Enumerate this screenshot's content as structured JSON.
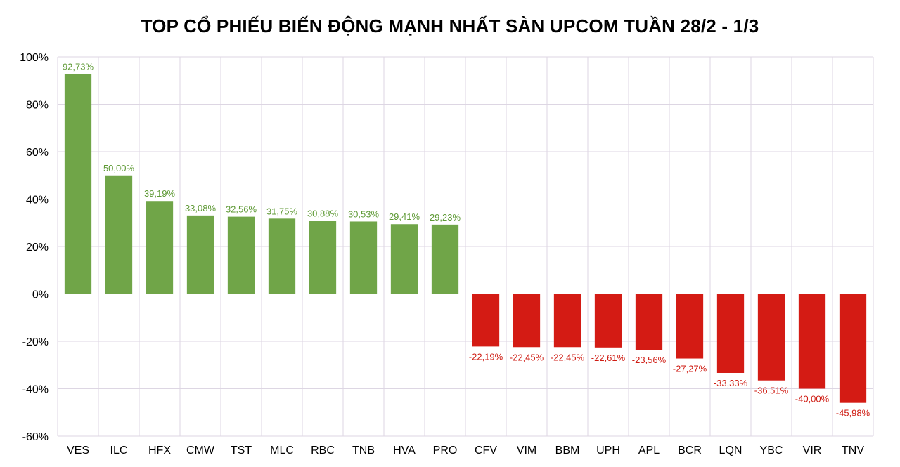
{
  "chart_data": {
    "type": "bar",
    "title": "TOP CỔ PHIẾU BIẾN ĐỘNG MẠNH NHẤT SÀN UPCOM TUẦN 28/2 - 1/3",
    "xlabel": "",
    "ylabel": "",
    "ylim": [
      -60,
      100
    ],
    "yticks": [
      100,
      80,
      60,
      40,
      20,
      0,
      -20,
      -40,
      -60
    ],
    "ytick_labels": [
      "100%",
      "80%",
      "60%",
      "40%",
      "20%",
      "0%",
      "-20%",
      "-40%",
      "-60%"
    ],
    "grid": true,
    "legend": "none",
    "colors": {
      "positive": "#70a548",
      "negative": "#d41b14",
      "grid": "#ddd6e3",
      "positive_label": "#5f9a36",
      "negative_label": "#cf1d14"
    },
    "categories": [
      "VES",
      "ILC",
      "HFX",
      "CMW",
      "TST",
      "MLC",
      "RBC",
      "TNB",
      "HVA",
      "PRO",
      "CFV",
      "VIM",
      "BBM",
      "UPH",
      "APL",
      "BCR",
      "LQN",
      "YBC",
      "VIR",
      "TNV"
    ],
    "values": [
      92.73,
      50.0,
      39.19,
      33.08,
      32.56,
      31.75,
      30.88,
      30.53,
      29.41,
      29.23,
      -22.19,
      -22.45,
      -22.45,
      -22.61,
      -23.56,
      -27.27,
      -33.33,
      -36.51,
      -40.0,
      -45.98
    ],
    "data_labels": [
      "92,73%",
      "50,00%",
      "39,19%",
      "33,08%",
      "32,56%",
      "31,75%",
      "30,88%",
      "30,53%",
      "29,41%",
      "29,23%",
      "-22,19%",
      "-22,45%",
      "-22,45%",
      "-22,61%",
      "-23,56%",
      "-27,27%",
      "-33,33%",
      "-36,51%",
      "-40,00%",
      "-45,98%"
    ]
  }
}
